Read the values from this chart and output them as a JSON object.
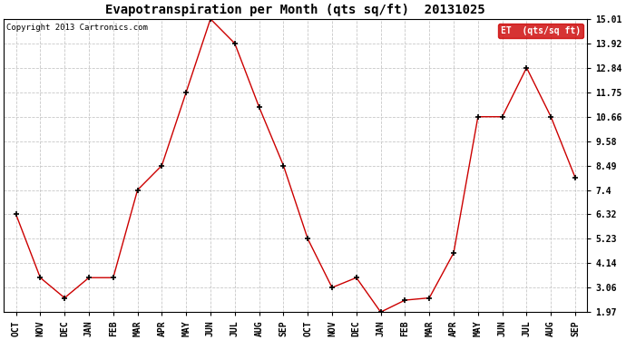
{
  "months": [
    "OCT",
    "NOV",
    "DEC",
    "JAN",
    "FEB",
    "MAR",
    "APR",
    "MAY",
    "JUN",
    "JUL",
    "AUG",
    "SEP",
    "OCT",
    "NOV",
    "DEC",
    "JAN",
    "FEB",
    "MAR",
    "APR",
    "MAY",
    "JUN",
    "JUL",
    "AUG",
    "SEP"
  ],
  "values": [
    6.32,
    3.5,
    2.6,
    3.5,
    3.5,
    7.4,
    8.49,
    11.75,
    15.01,
    13.92,
    11.09,
    8.49,
    5.23,
    3.06,
    3.5,
    1.97,
    2.5,
    2.6,
    4.6,
    10.66,
    10.66,
    12.84,
    10.66,
    7.95
  ],
  "yticks": [
    1.97,
    3.06,
    4.14,
    5.23,
    6.32,
    7.4,
    8.49,
    9.58,
    10.66,
    11.75,
    12.84,
    13.92,
    15.01
  ],
  "ylim": [
    1.97,
    15.01
  ],
  "title": "Evapotranspiration per Month (qts sq/ft)  20131025",
  "legend_label": "ET  (qts/sq ft)",
  "copyright": "Copyright 2013 Cartronics.com",
  "line_color": "#cc0000",
  "marker": "+",
  "bg_color": "#ffffff",
  "grid_color": "#c8c8c8",
  "title_fontsize": 10,
  "tick_fontsize": 7,
  "copyright_fontsize": 6.5,
  "legend_bg": "#cc0000",
  "legend_text_color": "#ffffff",
  "legend_fontsize": 7
}
